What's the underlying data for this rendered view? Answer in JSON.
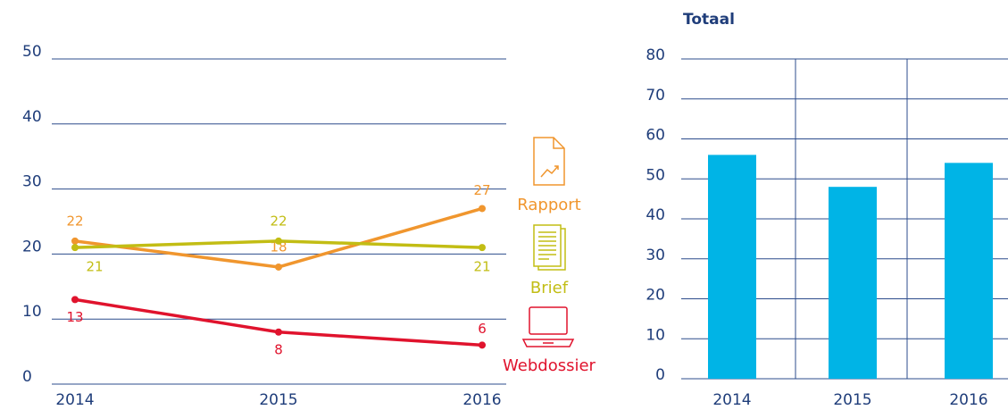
{
  "chart_data": [
    {
      "type": "line",
      "x": [
        "2014",
        "2015",
        "2016"
      ],
      "ylim": [
        0,
        50
      ],
      "yticks": [
        0,
        10,
        20,
        30,
        40,
        50
      ],
      "grid": true,
      "series": [
        {
          "name": "Rapport",
          "color": "#f0962e",
          "values": [
            22,
            18,
            27
          ]
        },
        {
          "name": "Brief",
          "color": "#c2bd14",
          "values": [
            21,
            22,
            21
          ]
        },
        {
          "name": "Webdossier",
          "color": "#e0132d",
          "values": [
            13,
            8,
            6
          ]
        }
      ]
    },
    {
      "type": "bar",
      "title": "Totaal",
      "categories": [
        "2014",
        "2015",
        "2016"
      ],
      "values": [
        56,
        48,
        54
      ],
      "color": "#00b4e6",
      "ylim": [
        0,
        80
      ],
      "yticks": [
        0,
        10,
        20,
        30,
        40,
        50,
        60,
        70,
        80
      ],
      "grid": true
    }
  ]
}
